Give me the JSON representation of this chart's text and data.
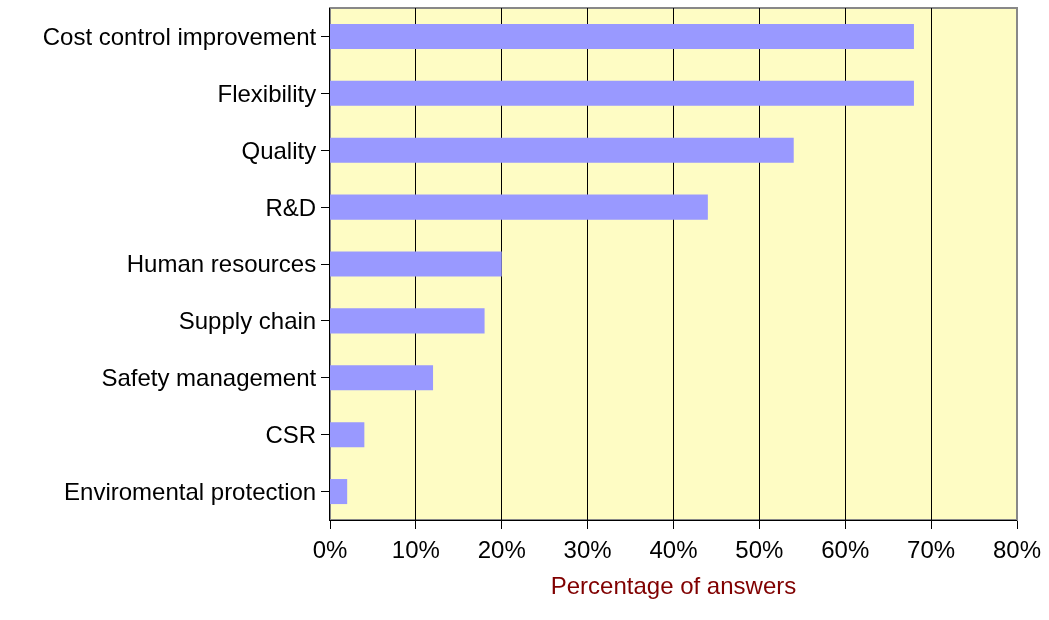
{
  "chart_data": {
    "type": "bar",
    "orientation": "horizontal",
    "xlabel": "Percentage of answers",
    "categories": [
      "Cost control improvement",
      "Flexibility",
      "Quality",
      "R&D",
      "Human resources",
      "Supply chain",
      "Safety management",
      "CSR",
      "Enviromental protection"
    ],
    "values": [
      68,
      68,
      54,
      44,
      20,
      18,
      12,
      4,
      2
    ],
    "color": "#9999ff",
    "xlim": [
      0,
      80
    ],
    "xticks": [
      {
        "value": 0,
        "label": "0%"
      },
      {
        "value": 10,
        "label": "10%"
      },
      {
        "value": 20,
        "label": "20%"
      },
      {
        "value": 30,
        "label": "30%"
      },
      {
        "value": 40,
        "label": "40%"
      },
      {
        "value": 50,
        "label": "50%"
      },
      {
        "value": 60,
        "label": "60%"
      },
      {
        "value": 70,
        "label": "70%"
      },
      {
        "value": 80,
        "label": "80%"
      }
    ],
    "grid": "x"
  }
}
